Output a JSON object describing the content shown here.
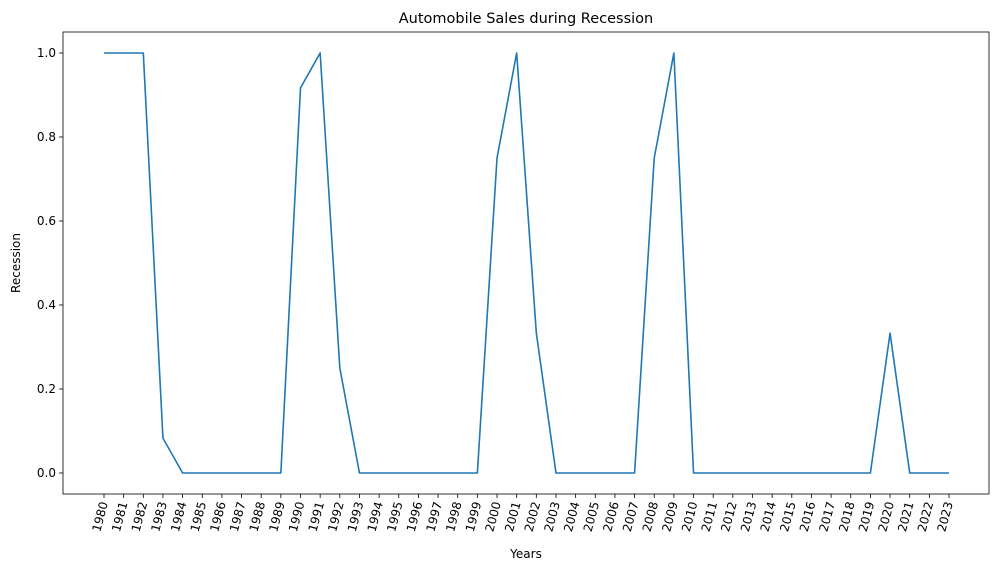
{
  "chart_data": {
    "type": "line",
    "title": "Automobile Sales during Recession",
    "xlabel": "Years",
    "ylabel": "Recession",
    "x": [
      "1980",
      "1981",
      "1982",
      "1983",
      "1984",
      "1985",
      "1986",
      "1987",
      "1988",
      "1989",
      "1990",
      "1991",
      "1992",
      "1993",
      "1994",
      "1995",
      "1996",
      "1997",
      "1998",
      "1999",
      "2000",
      "2001",
      "2002",
      "2003",
      "2004",
      "2005",
      "2006",
      "2007",
      "2008",
      "2009",
      "2010",
      "2011",
      "2012",
      "2013",
      "2014",
      "2015",
      "2016",
      "2017",
      "2018",
      "2019",
      "2020",
      "2021",
      "2022",
      "2023"
    ],
    "series": [
      {
        "values": [
          1.0,
          1.0,
          1.0,
          0.083,
          0,
          0,
          0,
          0,
          0,
          0,
          0.917,
          1.0,
          0.25,
          0,
          0,
          0,
          0,
          0,
          0,
          0,
          0.75,
          1.0,
          0.333,
          0,
          0,
          0,
          0,
          0,
          0.75,
          1.0,
          0,
          0,
          0,
          0,
          0,
          0,
          0,
          0,
          0,
          0,
          0.333,
          0,
          0,
          0
        ],
        "color": "#1f77b4"
      }
    ],
    "ylim": [
      -0.05,
      1.05
    ],
    "yticks": [
      "0.0",
      "0.2",
      "0.4",
      "0.6",
      "0.8",
      "1.0"
    ],
    "grid": false,
    "legend": "none"
  }
}
